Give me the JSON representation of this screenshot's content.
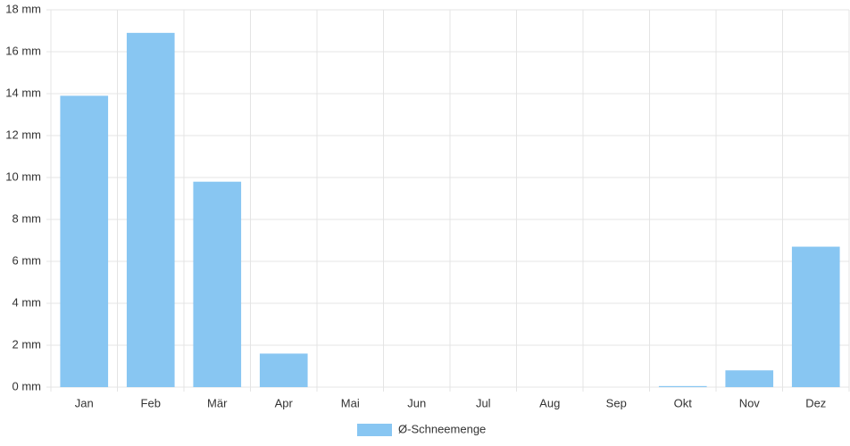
{
  "chart_data": {
    "type": "bar",
    "categories": [
      "Jan",
      "Feb",
      "Mär",
      "Apr",
      "Mai",
      "Jun",
      "Jul",
      "Aug",
      "Sep",
      "Okt",
      "Nov",
      "Dez"
    ],
    "series": [
      {
        "name": "Ø-Schneemenge",
        "color": "#88c6f2",
        "values": [
          13.9,
          16.9,
          9.8,
          1.6,
          0,
          0,
          0,
          0,
          0,
          0.05,
          0.8,
          6.7
        ]
      }
    ],
    "ylim": [
      0,
      18
    ],
    "yticks": [
      {
        "value": 0,
        "label": "0 mm"
      },
      {
        "value": 2,
        "label": "2 mm"
      },
      {
        "value": 4,
        "label": "4 mm"
      },
      {
        "value": 6,
        "label": "6 mm"
      },
      {
        "value": 8,
        "label": "8 mm"
      },
      {
        "value": 10,
        "label": "10 mm"
      },
      {
        "value": 12,
        "label": "12 mm"
      },
      {
        "value": 14,
        "label": "14 mm"
      },
      {
        "value": 16,
        "label": "16 mm"
      },
      {
        "value": 18,
        "label": "18 mm"
      }
    ],
    "grid": true,
    "legend": "bottom"
  }
}
